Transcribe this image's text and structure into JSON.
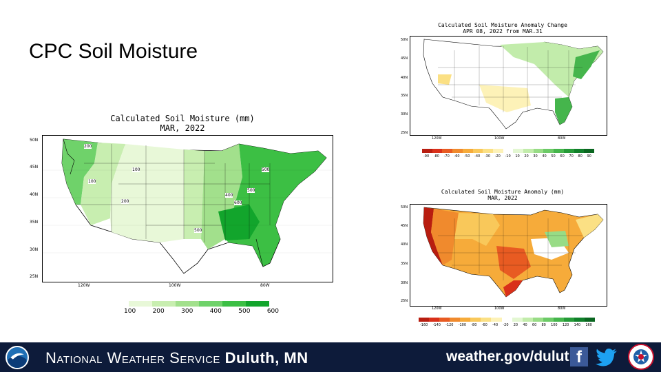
{
  "slide": {
    "title": "CPC Soil Moisture"
  },
  "main_map": {
    "title_line1": "Calculated Soil Moisture (mm)",
    "title_line2": "MAR, 2022",
    "lat_labels": [
      "50N",
      "45N",
      "40N",
      "35N",
      "30N",
      "25N"
    ],
    "lon_labels": [
      "120W",
      "100W",
      "80W"
    ],
    "contour_labels": [
      "200",
      "100",
      "100",
      "200",
      "400",
      "500",
      "500",
      "600",
      "500"
    ],
    "legend_labels": [
      "100",
      "200",
      "300",
      "400",
      "500",
      "600"
    ],
    "legend_colors": [
      "#e8f8d8",
      "#c8eeb0",
      "#a2e08c",
      "#6fd26a",
      "#3cbf44",
      "#12a52c"
    ]
  },
  "change_map": {
    "title_line1": "Calculated Soil Moisture Anomaly Change",
    "title_line2": "APR 08, 2022 from MAR.31",
    "lat_labels": [
      "50N",
      "45N",
      "40N",
      "35N",
      "30N",
      "25N"
    ],
    "lon_labels": [
      "120W",
      "100W",
      "80W"
    ],
    "legend_labels": [
      "-90",
      "-80",
      "-70",
      "-60",
      "-50",
      "-40",
      "-30",
      "-20",
      "-10",
      "10",
      "20",
      "30",
      "40",
      "50",
      "60",
      "70",
      "80",
      "90"
    ],
    "legend_colors": [
      "#b81d10",
      "#d9301a",
      "#e85b22",
      "#f08a2d",
      "#f6ab3a",
      "#f9c85a",
      "#fbe084",
      "#fdf2b8",
      "#ffffff",
      "#e3f7d2",
      "#c2ecab",
      "#98dc86",
      "#6cca67",
      "#45b54c",
      "#259a38",
      "#10802a",
      "#0a6620"
    ]
  },
  "anomaly_map": {
    "title_line1": "Calculated Soil Moisture Anomaly (mm)",
    "title_line2": "MAR, 2022",
    "lat_labels": [
      "50N",
      "45N",
      "40N",
      "35N",
      "30N",
      "25N"
    ],
    "lon_labels": [
      "120W",
      "100W",
      "80W"
    ],
    "legend_labels": [
      "-160",
      "-140",
      "-120",
      "-100",
      "-80",
      "-60",
      "-40",
      "-20",
      "20",
      "40",
      "60",
      "80",
      "100",
      "120",
      "140",
      "160"
    ],
    "legend_colors": [
      "#b81d10",
      "#d9301a",
      "#e85b22",
      "#f08a2d",
      "#f6ab3a",
      "#f9c85a",
      "#fbe084",
      "#fdf2b8",
      "#ffffff",
      "#e3f7d2",
      "#c2ecab",
      "#98dc86",
      "#6cca67",
      "#45b54c",
      "#259a38",
      "#10802a",
      "#0a6620"
    ]
  },
  "footer": {
    "name_prefix": "National Weather Service",
    "name_city": "Duluth, MN",
    "url": "weather.gov/duluth",
    "facebook_glyph": "f",
    "noaa_logo_text": "NOAA",
    "nws_logo_text": "NATIONAL WEATHER SERVICE"
  }
}
